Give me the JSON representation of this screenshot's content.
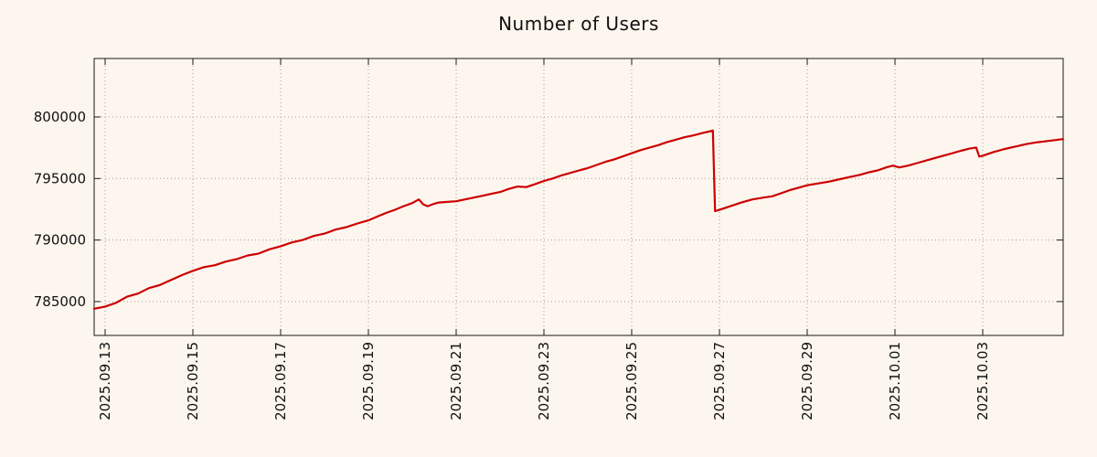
{
  "colors": {
    "background": "#fdf6ee",
    "line": "#cc0000",
    "grid": "#9e9e9e",
    "border": "#1a1a1a",
    "text": "#111111"
  },
  "chart_data": {
    "type": "line",
    "title": "Number of Users",
    "xlabel": "",
    "ylabel": "",
    "grid": "dotted",
    "legend": "none",
    "xlim_days": [
      -0.25,
      21.833
    ],
    "ylim": [
      782250,
      804750
    ],
    "y_ticks": [
      785000,
      790000,
      795000,
      800000
    ],
    "y_tick_labels": [
      "785000",
      "790000",
      "795000",
      "800000"
    ],
    "x_ticks": [
      {
        "day": 0,
        "label": "2025.09.13"
      },
      {
        "day": 2,
        "label": "2025.09.15"
      },
      {
        "day": 4,
        "label": "2025.09.17"
      },
      {
        "day": 6,
        "label": "2025.09.19"
      },
      {
        "day": 8,
        "label": "2025.09.21"
      },
      {
        "day": 10,
        "label": "2025.09.23"
      },
      {
        "day": 12,
        "label": "2025.09.25"
      },
      {
        "day": 14,
        "label": "2025.09.27"
      },
      {
        "day": 16,
        "label": "2025.09.29"
      },
      {
        "day": 18,
        "label": "2025.10.01"
      },
      {
        "day": 20,
        "label": "2025.10.03"
      }
    ],
    "series": [
      {
        "name": "users",
        "color": "#cc0000",
        "line_width": 2.2,
        "points": [
          [
            -0.25,
            784420
          ],
          [
            0,
            784600
          ],
          [
            0.25,
            784900
          ],
          [
            0.5,
            785400
          ],
          [
            0.75,
            785650
          ],
          [
            1,
            786100
          ],
          [
            1.25,
            786350
          ],
          [
            1.5,
            786750
          ],
          [
            1.75,
            787150
          ],
          [
            2,
            787500
          ],
          [
            2.25,
            787800
          ],
          [
            2.5,
            787950
          ],
          [
            2.75,
            788250
          ],
          [
            3,
            788450
          ],
          [
            3.25,
            788750
          ],
          [
            3.5,
            788900
          ],
          [
            3.75,
            789250
          ],
          [
            4,
            789500
          ],
          [
            4.25,
            789800
          ],
          [
            4.5,
            790000
          ],
          [
            4.75,
            790330
          ],
          [
            5,
            790520
          ],
          [
            5.25,
            790850
          ],
          [
            5.5,
            791050
          ],
          [
            5.75,
            791350
          ],
          [
            6,
            791600
          ],
          [
            6.2,
            791900
          ],
          [
            6.4,
            792200
          ],
          [
            6.6,
            792450
          ],
          [
            6.8,
            792750
          ],
          [
            7,
            793000
          ],
          [
            7.15,
            793300
          ],
          [
            7.25,
            792900
          ],
          [
            7.35,
            792750
          ],
          [
            7.5,
            792950
          ],
          [
            7.6,
            793050
          ],
          [
            7.8,
            793100
          ],
          [
            8,
            793150
          ],
          [
            8.2,
            793300
          ],
          [
            8.4,
            793450
          ],
          [
            8.6,
            793600
          ],
          [
            8.8,
            793750
          ],
          [
            9,
            793900
          ],
          [
            9.2,
            794150
          ],
          [
            9.4,
            794350
          ],
          [
            9.6,
            794300
          ],
          [
            9.8,
            794550
          ],
          [
            10,
            794800
          ],
          [
            10.2,
            795000
          ],
          [
            10.4,
            795250
          ],
          [
            10.6,
            795450
          ],
          [
            10.8,
            795650
          ],
          [
            11,
            795850
          ],
          [
            11.2,
            796100
          ],
          [
            11.4,
            796350
          ],
          [
            11.6,
            796550
          ],
          [
            11.8,
            796800
          ],
          [
            12,
            797050
          ],
          [
            12.2,
            797300
          ],
          [
            12.4,
            797500
          ],
          [
            12.6,
            797700
          ],
          [
            12.8,
            797950
          ],
          [
            13,
            798150
          ],
          [
            13.2,
            798350
          ],
          [
            13.4,
            798500
          ],
          [
            13.6,
            798680
          ],
          [
            13.8,
            798850
          ],
          [
            13.85,
            798900
          ],
          [
            13.9,
            792350
          ],
          [
            14,
            792450
          ],
          [
            14.25,
            792750
          ],
          [
            14.5,
            793050
          ],
          [
            14.75,
            793300
          ],
          [
            15,
            793450
          ],
          [
            15.2,
            793550
          ],
          [
            15.4,
            793800
          ],
          [
            15.6,
            794050
          ],
          [
            15.8,
            794250
          ],
          [
            16,
            794450
          ],
          [
            16.25,
            794600
          ],
          [
            16.5,
            794750
          ],
          [
            16.75,
            794950
          ],
          [
            17,
            795150
          ],
          [
            17.2,
            795300
          ],
          [
            17.4,
            795500
          ],
          [
            17.6,
            795650
          ],
          [
            17.8,
            795900
          ],
          [
            17.95,
            796050
          ],
          [
            18.1,
            795900
          ],
          [
            18.3,
            796050
          ],
          [
            18.5,
            796250
          ],
          [
            18.75,
            796500
          ],
          [
            19,
            796750
          ],
          [
            19.25,
            797000
          ],
          [
            19.5,
            797250
          ],
          [
            19.7,
            797430
          ],
          [
            19.85,
            797520
          ],
          [
            19.92,
            796780
          ],
          [
            20,
            796850
          ],
          [
            20.25,
            797150
          ],
          [
            20.5,
            797400
          ],
          [
            20.75,
            797600
          ],
          [
            21,
            797800
          ],
          [
            21.25,
            797950
          ],
          [
            21.5,
            798050
          ],
          [
            21.83,
            798200
          ]
        ]
      }
    ]
  }
}
